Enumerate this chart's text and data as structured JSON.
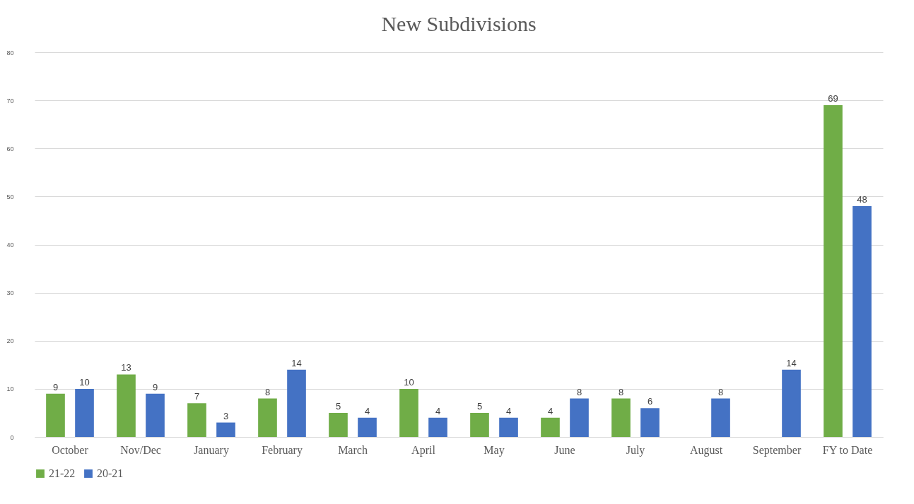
{
  "chart_data": {
    "type": "bar",
    "title": "New Subdivisions",
    "categories": [
      "October",
      "Nov/Dec",
      "January",
      "February",
      "March",
      "April",
      "May",
      "June",
      "July",
      "August",
      "September",
      "FY to Date"
    ],
    "series": [
      {
        "name": "21-22",
        "color": "#70ad47",
        "values": [
          9,
          13,
          7,
          8,
          5,
          10,
          5,
          4,
          8,
          null,
          null,
          69
        ]
      },
      {
        "name": "20-21",
        "color": "#4472c4",
        "values": [
          10,
          9,
          3,
          14,
          4,
          4,
          4,
          8,
          6,
          8,
          14,
          48
        ]
      }
    ],
    "ylim": [
      0,
      80
    ],
    "yticks": [
      0,
      10,
      20,
      30,
      40,
      50,
      60,
      70,
      80
    ],
    "grid": "y",
    "legend": "bottom",
    "data_labels": true
  }
}
